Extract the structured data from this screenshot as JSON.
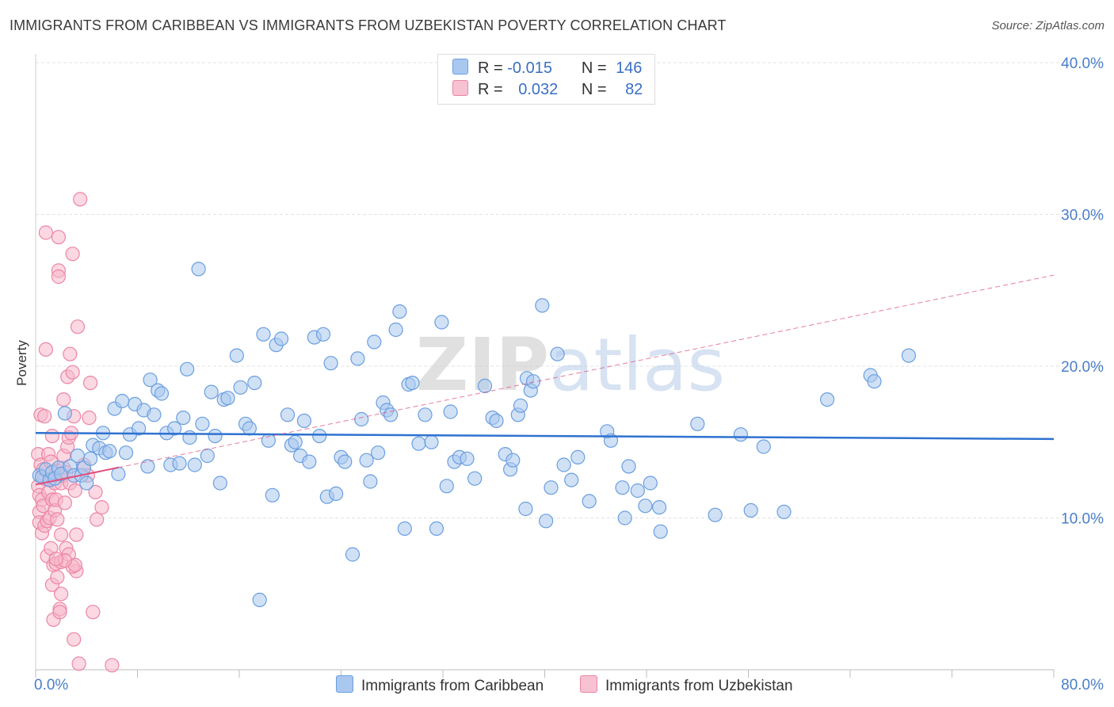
{
  "title": "IMMIGRANTS FROM CARIBBEAN VS IMMIGRANTS FROM UZBEKISTAN POVERTY CORRELATION CHART",
  "source": "Source: ZipAtlas.com",
  "watermark": "ZIPatlas",
  "stats": {
    "rows": [
      {
        "r_label": "R =",
        "r_value": "-0.015",
        "n_label": "N =",
        "n_value": "146"
      },
      {
        "r_label": "R =",
        "r_value": "0.032",
        "n_label": "N =",
        "n_value": "82"
      }
    ]
  },
  "colors": {
    "caribbean_fill": "#a9c8ef",
    "caribbean_stroke": "#6a9ee0",
    "caribbean_line": "#2f72d0",
    "uzbek_fill": "#f7b8cb",
    "uzbek_stroke": "#ec85a5",
    "uzbek_line": "#e0507e",
    "grid": "#e2e2e2",
    "axis_text": "#4a7ec8"
  },
  "chart_data": {
    "type": "scatter",
    "title": "IMMIGRANTS FROM CARIBBEAN VS IMMIGRANTS FROM UZBEKISTAN POVERTY CORRELATION CHART",
    "xlabel": "",
    "ylabel": "Poverty",
    "xlim": [
      0,
      80
    ],
    "ylim": [
      0,
      40
    ],
    "x_tick_labels": [
      "0.0%",
      "80.0%"
    ],
    "y_ticks": [
      10,
      20,
      30,
      40
    ],
    "y_tick_labels": [
      "10.0%",
      "20.0%",
      "30.0%",
      "40.0%"
    ],
    "grid": true,
    "legend_position": "bottom-center",
    "series": [
      {
        "name": "Immigrants from Caribbean",
        "r": -0.015,
        "n": 146,
        "trend": {
          "x": [
            0,
            80
          ],
          "y": [
            15.6,
            15.2
          ]
        },
        "points": [
          [
            0.3,
            12.8
          ],
          [
            0.5,
            12.7
          ],
          [
            0.8,
            13.2
          ],
          [
            1.1,
            12.5
          ],
          [
            1.3,
            13.0
          ],
          [
            1.5,
            12.6
          ],
          [
            1.8,
            13.3
          ],
          [
            2.0,
            12.9
          ],
          [
            2.3,
            16.9
          ],
          [
            2.7,
            13.4
          ],
          [
            3.0,
            12.8
          ],
          [
            3.3,
            14.1
          ],
          [
            3.6,
            12.8
          ],
          [
            3.8,
            13.3
          ],
          [
            4.0,
            12.3
          ],
          [
            4.3,
            13.9
          ],
          [
            4.5,
            14.8
          ],
          [
            5.0,
            14.6
          ],
          [
            5.3,
            15.6
          ],
          [
            5.5,
            14.3
          ],
          [
            5.8,
            14.4
          ],
          [
            6.2,
            17.2
          ],
          [
            6.5,
            12.9
          ],
          [
            6.8,
            17.7
          ],
          [
            7.1,
            14.3
          ],
          [
            7.4,
            15.5
          ],
          [
            7.8,
            17.5
          ],
          [
            8.1,
            15.9
          ],
          [
            8.5,
            17.1
          ],
          [
            8.8,
            13.4
          ],
          [
            9.0,
            19.1
          ],
          [
            9.3,
            16.8
          ],
          [
            9.6,
            18.4
          ],
          [
            9.9,
            18.2
          ],
          [
            10.3,
            15.6
          ],
          [
            10.6,
            13.5
          ],
          [
            10.9,
            15.9
          ],
          [
            11.3,
            13.6
          ],
          [
            11.6,
            16.6
          ],
          [
            11.9,
            19.8
          ],
          [
            12.1,
            15.3
          ],
          [
            12.5,
            13.5
          ],
          [
            12.8,
            26.4
          ],
          [
            13.1,
            16.2
          ],
          [
            13.5,
            14.1
          ],
          [
            13.8,
            18.3
          ],
          [
            14.1,
            15.4
          ],
          [
            14.5,
            12.3
          ],
          [
            14.8,
            17.8
          ],
          [
            15.1,
            17.9
          ],
          [
            15.8,
            20.7
          ],
          [
            16.1,
            18.6
          ],
          [
            16.5,
            16.2
          ],
          [
            16.8,
            15.9
          ],
          [
            17.2,
            18.9
          ],
          [
            17.6,
            4.6
          ],
          [
            17.9,
            22.1
          ],
          [
            18.3,
            15.1
          ],
          [
            18.6,
            11.5
          ],
          [
            18.9,
            21.4
          ],
          [
            19.3,
            21.8
          ],
          [
            19.8,
            16.8
          ],
          [
            20.1,
            14.8
          ],
          [
            20.4,
            15.0
          ],
          [
            20.8,
            14.1
          ],
          [
            21.1,
            16.4
          ],
          [
            21.5,
            13.7
          ],
          [
            21.9,
            21.9
          ],
          [
            22.3,
            15.4
          ],
          [
            22.6,
            22.1
          ],
          [
            22.9,
            11.4
          ],
          [
            23.2,
            20.2
          ],
          [
            23.6,
            11.6
          ],
          [
            24.0,
            14.0
          ],
          [
            24.3,
            13.7
          ],
          [
            24.9,
            7.6
          ],
          [
            25.3,
            20.5
          ],
          [
            25.6,
            16.5
          ],
          [
            26.0,
            13.8
          ],
          [
            26.3,
            12.4
          ],
          [
            26.6,
            21.6
          ],
          [
            26.9,
            14.3
          ],
          [
            27.3,
            17.6
          ],
          [
            27.6,
            17.1
          ],
          [
            27.9,
            16.8
          ],
          [
            28.3,
            22.4
          ],
          [
            28.6,
            23.6
          ],
          [
            29.0,
            9.3
          ],
          [
            29.3,
            18.8
          ],
          [
            29.6,
            18.9
          ],
          [
            30.1,
            14.9
          ],
          [
            30.6,
            16.8
          ],
          [
            31.1,
            15.0
          ],
          [
            31.5,
            9.3
          ],
          [
            31.9,
            22.9
          ],
          [
            32.3,
            12.1
          ],
          [
            32.6,
            17.0
          ],
          [
            32.9,
            13.7
          ],
          [
            33.3,
            14.0
          ],
          [
            33.9,
            13.9
          ],
          [
            34.5,
            12.6
          ],
          [
            35.3,
            18.7
          ],
          [
            35.9,
            16.6
          ],
          [
            36.2,
            16.4
          ],
          [
            36.9,
            14.2
          ],
          [
            37.3,
            13.2
          ],
          [
            37.5,
            13.8
          ],
          [
            37.9,
            16.8
          ],
          [
            38.1,
            17.4
          ],
          [
            38.6,
            19.2
          ],
          [
            38.9,
            18.4
          ],
          [
            39.1,
            19.0
          ],
          [
            38.5,
            10.6
          ],
          [
            39.8,
            24.0
          ],
          [
            40.1,
            9.8
          ],
          [
            40.5,
            12.0
          ],
          [
            41.0,
            20.8
          ],
          [
            41.5,
            13.5
          ],
          [
            42.1,
            12.5
          ],
          [
            42.6,
            14.0
          ],
          [
            43.5,
            11.1
          ],
          [
            44.9,
            15.7
          ],
          [
            45.2,
            15.1
          ],
          [
            46.1,
            12.0
          ],
          [
            46.3,
            10.0
          ],
          [
            46.6,
            13.4
          ],
          [
            47.3,
            11.8
          ],
          [
            47.9,
            10.8
          ],
          [
            48.3,
            12.3
          ],
          [
            49.1,
            9.1
          ],
          [
            49.0,
            10.7
          ],
          [
            52.0,
            16.2
          ],
          [
            53.4,
            10.2
          ],
          [
            55.4,
            15.5
          ],
          [
            56.2,
            10.5
          ],
          [
            57.2,
            14.7
          ],
          [
            58.8,
            10.4
          ],
          [
            62.2,
            17.8
          ],
          [
            65.6,
            19.4
          ],
          [
            65.9,
            19.0
          ],
          [
            68.6,
            20.7
          ]
        ]
      },
      {
        "name": "Immigrants from Uzbekistan",
        "r": 0.032,
        "n": 82,
        "trend": {
          "x": [
            0,
            80
          ],
          "y": [
            12.2,
            26.0
          ]
        },
        "points": [
          [
            0.2,
            14.2
          ],
          [
            0.2,
            12.1
          ],
          [
            0.3,
            11.5
          ],
          [
            0.3,
            10.4
          ],
          [
            0.3,
            9.7
          ],
          [
            0.4,
            16.8
          ],
          [
            0.4,
            13.5
          ],
          [
            0.5,
            9.0
          ],
          [
            0.5,
            11.2
          ],
          [
            0.6,
            13.2
          ],
          [
            0.6,
            10.8
          ],
          [
            0.7,
            9.5
          ],
          [
            0.7,
            16.7
          ],
          [
            0.7,
            12.6
          ],
          [
            0.8,
            21.1
          ],
          [
            0.8,
            28.8
          ],
          [
            0.9,
            9.8
          ],
          [
            0.9,
            7.5
          ],
          [
            1.0,
            14.2
          ],
          [
            1.0,
            11.7
          ],
          [
            1.1,
            12.5
          ],
          [
            1.1,
            10.0
          ],
          [
            1.2,
            8.0
          ],
          [
            1.2,
            13.7
          ],
          [
            1.3,
            15.4
          ],
          [
            1.3,
            11.2
          ],
          [
            1.3,
            5.6
          ],
          [
            1.4,
            6.9
          ],
          [
            1.4,
            3.3
          ],
          [
            1.5,
            10.5
          ],
          [
            1.5,
            12.3
          ],
          [
            1.6,
            11.2
          ],
          [
            1.6,
            7.0
          ],
          [
            1.7,
            13.1
          ],
          [
            1.7,
            9.9
          ],
          [
            1.7,
            6.1
          ],
          [
            1.8,
            28.5
          ],
          [
            1.8,
            26.3
          ],
          [
            1.8,
            25.9
          ],
          [
            1.9,
            4.0
          ],
          [
            1.9,
            3.8
          ],
          [
            2.0,
            12.3
          ],
          [
            2.0,
            8.9
          ],
          [
            2.0,
            7.1
          ],
          [
            2.0,
            5.0
          ],
          [
            2.1,
            12.8
          ],
          [
            2.2,
            13.3
          ],
          [
            2.2,
            17.8
          ],
          [
            2.2,
            14.1
          ],
          [
            2.3,
            11.0
          ],
          [
            2.4,
            13.0
          ],
          [
            2.4,
            8.0
          ],
          [
            2.5,
            19.3
          ],
          [
            2.5,
            14.7
          ],
          [
            2.6,
            15.3
          ],
          [
            2.7,
            12.3
          ],
          [
            2.7,
            20.8
          ],
          [
            2.8,
            15.6
          ],
          [
            2.9,
            19.6
          ],
          [
            2.9,
            27.4
          ],
          [
            3.0,
            16.7
          ],
          [
            3.1,
            11.8
          ],
          [
            3.2,
            8.9
          ],
          [
            3.2,
            6.5
          ],
          [
            3.3,
            22.6
          ],
          [
            3.5,
            31.0
          ],
          [
            3.8,
            13.5
          ],
          [
            4.1,
            12.8
          ],
          [
            4.2,
            16.6
          ],
          [
            4.3,
            18.9
          ],
          [
            4.5,
            3.8
          ],
          [
            4.7,
            11.7
          ],
          [
            4.8,
            9.9
          ],
          [
            2.6,
            7.6
          ],
          [
            2.9,
            6.8
          ],
          [
            3.1,
            6.9
          ],
          [
            2.3,
            7.2
          ],
          [
            1.6,
            7.3
          ],
          [
            3.4,
            0.4
          ],
          [
            3.0,
            2.0
          ],
          [
            5.2,
            10.7
          ],
          [
            6.0,
            0.3
          ]
        ]
      }
    ]
  },
  "legend": {
    "items": [
      {
        "label": "Immigrants from Caribbean"
      },
      {
        "label": "Immigrants from Uzbekistan"
      }
    ]
  }
}
